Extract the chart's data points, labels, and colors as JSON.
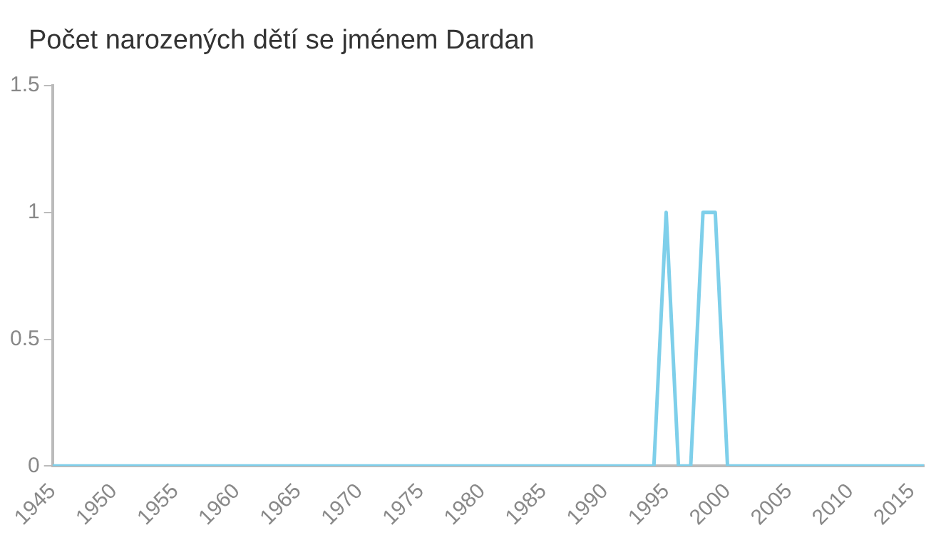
{
  "chart_data": {
    "type": "line",
    "title": "Počet narozených dětí se jménem Dardan",
    "x": [
      1945,
      1946,
      1947,
      1948,
      1949,
      1950,
      1951,
      1952,
      1953,
      1954,
      1955,
      1956,
      1957,
      1958,
      1959,
      1960,
      1961,
      1962,
      1963,
      1964,
      1965,
      1966,
      1967,
      1968,
      1969,
      1970,
      1971,
      1972,
      1973,
      1974,
      1975,
      1976,
      1977,
      1978,
      1979,
      1980,
      1981,
      1982,
      1983,
      1984,
      1985,
      1986,
      1987,
      1988,
      1989,
      1990,
      1991,
      1992,
      1993,
      1994,
      1995,
      1996,
      1997,
      1998,
      1999,
      2000,
      2001,
      2002,
      2003,
      2004,
      2005,
      2006,
      2007,
      2008,
      2009,
      2010,
      2011,
      2012,
      2013,
      2014,
      2015,
      2016
    ],
    "series": [
      {
        "color": "#7ecfea",
        "values": [
          0,
          0,
          0,
          0,
          0,
          0,
          0,
          0,
          0,
          0,
          0,
          0,
          0,
          0,
          0,
          0,
          0,
          0,
          0,
          0,
          0,
          0,
          0,
          0,
          0,
          0,
          0,
          0,
          0,
          0,
          0,
          0,
          0,
          0,
          0,
          0,
          0,
          0,
          0,
          0,
          0,
          0,
          0,
          0,
          0,
          0,
          0,
          0,
          0,
          0,
          1,
          0,
          0,
          1,
          1,
          0,
          0,
          0,
          0,
          0,
          0,
          0,
          0,
          0,
          0,
          0,
          0,
          0,
          0,
          0,
          0,
          0
        ]
      }
    ],
    "xlim": [
      1945,
      2016
    ],
    "xticks": [
      1945,
      1950,
      1955,
      1960,
      1965,
      1970,
      1975,
      1980,
      1985,
      1990,
      1995,
      2000,
      2005,
      2010,
      2015
    ],
    "ylim": [
      0,
      1.5
    ],
    "yticks": [
      0,
      0.5,
      1,
      1.5
    ],
    "grid": false,
    "legend": false,
    "marker": "none",
    "line_style": "solid"
  }
}
